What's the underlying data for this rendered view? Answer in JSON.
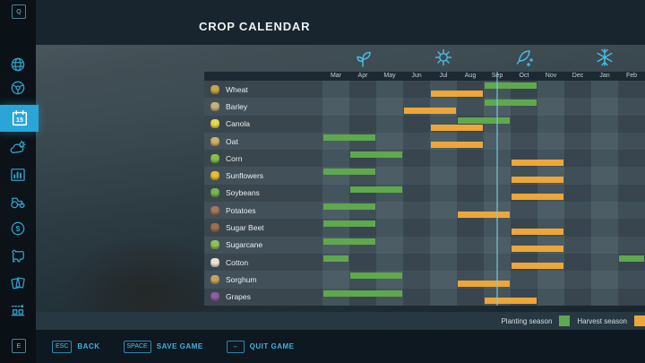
{
  "title": "CROP CALENDAR",
  "colors": {
    "accent": "#29a5d8",
    "planting": "#5fa84e",
    "harvest": "#eda63a"
  },
  "sidebar": {
    "prev_key": "Q",
    "next_key": "E",
    "calendar_day": "15",
    "finance_symbol": "$",
    "selected_item": "crop-calendar",
    "icons": [
      "globe-icon",
      "steering-wheel-icon",
      "calendar-icon",
      "weather-icon",
      "statistics-icon",
      "tractor-icon",
      "finances-icon",
      "animals-icon",
      "contracts-icon",
      "production-chain-icon"
    ]
  },
  "calendar": {
    "months": [
      "Mar",
      "Apr",
      "May",
      "Jun",
      "Jul",
      "Aug",
      "Sep",
      "Oct",
      "Nov",
      "Dec",
      "Jan",
      "Feb"
    ],
    "season_icons": [
      {
        "name": "spring-sprout-icon",
        "month_index": 1
      },
      {
        "name": "summer-sun-icon",
        "month_index": 4
      },
      {
        "name": "autumn-leaf-icon",
        "month_index": 7
      },
      {
        "name": "winter-snowflake-icon",
        "month_index": 10
      }
    ],
    "today_marker": {
      "month": "Sep",
      "month_index": 6,
      "fraction": 0.5
    },
    "crops": [
      {
        "name": "Wheat",
        "icon": "wheat-icon",
        "icon_color": "#caa54a",
        "planting": [
          [
            6,
            7
          ]
        ],
        "harvest": [
          [
            4,
            5
          ]
        ]
      },
      {
        "name": "Barley",
        "icon": "barley-icon",
        "icon_color": "#c3b27c",
        "planting": [
          [
            6,
            7
          ]
        ],
        "harvest": [
          [
            3,
            4
          ]
        ]
      },
      {
        "name": "Canola",
        "icon": "canola-icon",
        "icon_color": "#ead94f",
        "planting": [
          [
            5,
            6
          ]
        ],
        "harvest": [
          [
            4,
            5
          ]
        ]
      },
      {
        "name": "Oat",
        "icon": "oat-icon",
        "icon_color": "#d2b06a",
        "planting": [
          [
            0,
            1
          ]
        ],
        "harvest": [
          [
            4,
            5
          ]
        ]
      },
      {
        "name": "Corn",
        "icon": "corn-icon",
        "icon_color": "#8abf4a",
        "planting": [
          [
            1,
            2
          ]
        ],
        "harvest": [
          [
            7,
            8
          ]
        ]
      },
      {
        "name": "Sunflowers",
        "icon": "sunflower-icon",
        "icon_color": "#eebb2a",
        "planting": [
          [
            0,
            1
          ]
        ],
        "harvest": [
          [
            7,
            8
          ]
        ]
      },
      {
        "name": "Soybeans",
        "icon": "soybean-icon",
        "icon_color": "#79b352",
        "planting": [
          [
            1,
            2
          ]
        ],
        "harvest": [
          [
            7,
            8
          ]
        ]
      },
      {
        "name": "Potatoes",
        "icon": "potato-icon",
        "icon_color": "#a5785a",
        "planting": [
          [
            0,
            1
          ]
        ],
        "harvest": [
          [
            5,
            6
          ]
        ]
      },
      {
        "name": "Sugar Beet",
        "icon": "sugar-beet-icon",
        "icon_color": "#9b6f4f",
        "planting": [
          [
            0,
            1
          ]
        ],
        "harvest": [
          [
            7,
            8
          ]
        ]
      },
      {
        "name": "Sugarcane",
        "icon": "sugarcane-icon",
        "icon_color": "#90c25a",
        "planting": [
          [
            0,
            1
          ]
        ],
        "harvest": [
          [
            7,
            8
          ]
        ]
      },
      {
        "name": "Cotton",
        "icon": "cotton-icon",
        "icon_color": "#e9e4d8",
        "planting": [
          [
            0,
            0
          ],
          [
            11,
            11
          ]
        ],
        "harvest": [
          [
            7,
            8
          ]
        ]
      },
      {
        "name": "Sorghum",
        "icon": "sorghum-icon",
        "icon_color": "#c9a060",
        "planting": [
          [
            1,
            2
          ]
        ],
        "harvest": [
          [
            5,
            6
          ]
        ]
      },
      {
        "name": "Grapes",
        "icon": "grape-icon",
        "icon_color": "#8d5f9e",
        "planting": [
          [
            0,
            2
          ]
        ],
        "harvest": [
          [
            6,
            7
          ]
        ]
      }
    ]
  },
  "legend": {
    "planting_label": "Planting season",
    "harvest_label": "Harvest season"
  },
  "footer": {
    "back": {
      "key": "ESC",
      "label": "BACK"
    },
    "save": {
      "key": "SPACE",
      "label": "SAVE GAME"
    },
    "quit": {
      "key": "↔",
      "label": "QUIT GAME"
    }
  }
}
